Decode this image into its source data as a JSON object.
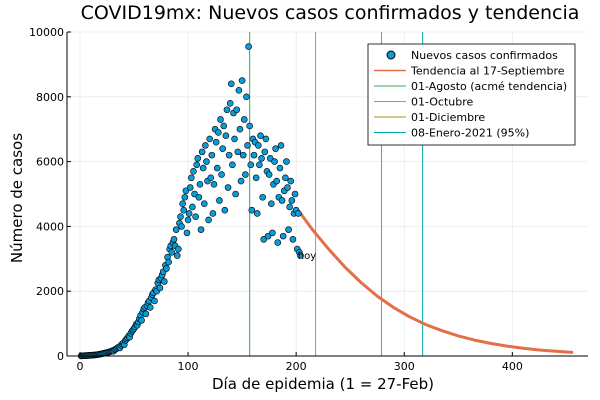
{
  "chart_data": {
    "type": "scatter",
    "title": "COVID19mx: Nuevos casos confirmados y tendencia",
    "xlabel": "Día de epidemia (1 = 27-Feb)",
    "ylabel": "Número de casos",
    "xlim": [
      -12,
      470
    ],
    "ylim": [
      0,
      10000
    ],
    "xticks": [
      0,
      100,
      200,
      300,
      400
    ],
    "yticks": [
      0,
      2000,
      4000,
      6000,
      8000,
      10000
    ],
    "grid": true,
    "legend_position": "top-right",
    "series": [
      {
        "name": "Nuevos casos confirmados",
        "kind": "scatter",
        "color": "#0a9bd8",
        "points": [
          [
            1,
            2
          ],
          [
            2,
            5
          ],
          [
            3,
            8
          ],
          [
            4,
            10
          ],
          [
            5,
            12
          ],
          [
            6,
            15
          ],
          [
            7,
            14
          ],
          [
            8,
            18
          ],
          [
            9,
            20
          ],
          [
            10,
            22
          ],
          [
            11,
            25
          ],
          [
            12,
            28
          ],
          [
            13,
            30
          ],
          [
            14,
            34
          ],
          [
            15,
            38
          ],
          [
            16,
            42
          ],
          [
            17,
            48
          ],
          [
            18,
            55
          ],
          [
            19,
            60
          ],
          [
            20,
            68
          ],
          [
            21,
            75
          ],
          [
            22,
            82
          ],
          [
            23,
            90
          ],
          [
            24,
            98
          ],
          [
            25,
            105
          ],
          [
            26,
            115
          ],
          [
            27,
            125
          ],
          [
            28,
            135
          ],
          [
            29,
            150
          ],
          [
            30,
            165
          ],
          [
            31,
            150
          ],
          [
            32,
            190
          ],
          [
            33,
            210
          ],
          [
            34,
            230
          ],
          [
            35,
            260
          ],
          [
            36,
            280
          ],
          [
            37,
            250
          ],
          [
            38,
            330
          ],
          [
            39,
            370
          ],
          [
            40,
            400
          ],
          [
            41,
            350
          ],
          [
            42,
            480
          ],
          [
            43,
            520
          ],
          [
            44,
            560
          ],
          [
            45,
            620
          ],
          [
            46,
            580
          ],
          [
            47,
            700
          ],
          [
            48,
            760
          ],
          [
            49,
            800
          ],
          [
            50,
            850
          ],
          [
            51,
            900
          ],
          [
            52,
            980
          ],
          [
            53,
            950
          ],
          [
            54,
            1050
          ],
          [
            55,
            1150
          ],
          [
            56,
            1250
          ],
          [
            57,
            1100
          ],
          [
            58,
            1350
          ],
          [
            59,
            1450
          ],
          [
            60,
            1500
          ],
          [
            61,
            1300
          ],
          [
            62,
            1550
          ],
          [
            63,
            1650
          ],
          [
            64,
            1700
          ],
          [
            65,
            1500
          ],
          [
            66,
            1800
          ],
          [
            67,
            1900
          ],
          [
            68,
            1950
          ],
          [
            69,
            1700
          ],
          [
            70,
            2050
          ],
          [
            71,
            2000
          ],
          [
            72,
            2250
          ],
          [
            73,
            2350
          ],
          [
            74,
            2100
          ],
          [
            75,
            2400
          ],
          [
            76,
            2500
          ],
          [
            77,
            2600
          ],
          [
            78,
            2300
          ],
          [
            79,
            2800
          ],
          [
            80,
            2700
          ],
          [
            81,
            3050
          ],
          [
            82,
            2900
          ],
          [
            83,
            3300
          ],
          [
            84,
            3400
          ],
          [
            85,
            3200
          ],
          [
            86,
            3500
          ],
          [
            87,
            3600
          ],
          [
            88,
            3400
          ],
          [
            89,
            3900
          ],
          [
            90,
            3100
          ],
          [
            91,
            3300
          ],
          [
            92,
            4100
          ],
          [
            93,
            4300
          ],
          [
            94,
            4000
          ],
          [
            95,
            4700
          ],
          [
            96,
            4500
          ],
          [
            97,
            4900
          ],
          [
            98,
            5100
          ],
          [
            99,
            3800
          ],
          [
            100,
            4200
          ],
          [
            101,
            4400
          ],
          [
            102,
            5200
          ],
          [
            103,
            5500
          ],
          [
            104,
            4600
          ],
          [
            105,
            5700
          ],
          [
            106,
            5000
          ],
          [
            107,
            4300
          ],
          [
            108,
            5900
          ],
          [
            109,
            6100
          ],
          [
            110,
            4900
          ],
          [
            111,
            5300
          ],
          [
            112,
            3900
          ],
          [
            113,
            6300
          ],
          [
            114,
            5800
          ],
          [
            115,
            4700
          ],
          [
            116,
            6500
          ],
          [
            117,
            6000
          ],
          [
            118,
            5400
          ],
          [
            119,
            4200
          ],
          [
            120,
            6700
          ],
          [
            121,
            5500
          ],
          [
            122,
            6200
          ],
          [
            123,
            4400
          ],
          [
            124,
            5300
          ],
          [
            125,
            7000
          ],
          [
            126,
            6600
          ],
          [
            127,
            5800
          ],
          [
            128,
            6900
          ],
          [
            129,
            4800
          ],
          [
            130,
            7300
          ],
          [
            131,
            5600
          ],
          [
            132,
            6400
          ],
          [
            133,
            7100
          ],
          [
            134,
            4500
          ],
          [
            135,
            6800
          ],
          [
            136,
            7600
          ],
          [
            137,
            5200
          ],
          [
            138,
            6200
          ],
          [
            139,
            7800
          ],
          [
            140,
            8400
          ],
          [
            141,
            5900
          ],
          [
            142,
            7500
          ],
          [
            143,
            6700
          ],
          [
            144,
            5000
          ],
          [
            145,
            7600
          ],
          [
            146,
            6300
          ],
          [
            147,
            8200
          ],
          [
            148,
            7000
          ],
          [
            149,
            5400
          ],
          [
            150,
            8500
          ],
          [
            151,
            6200
          ],
          [
            152,
            7300
          ],
          [
            153,
            5600
          ],
          [
            154,
            8000
          ],
          [
            155,
            6500
          ],
          [
            156,
            9550
          ],
          [
            157,
            7100
          ],
          [
            158,
            5900
          ],
          [
            159,
            4500
          ],
          [
            160,
            6700
          ],
          [
            161,
            6200
          ],
          [
            162,
            6600
          ],
          [
            163,
            5500
          ],
          [
            164,
            4400
          ],
          [
            165,
            6500
          ],
          [
            166,
            5900
          ],
          [
            167,
            6800
          ],
          [
            168,
            6100
          ],
          [
            169,
            4900
          ],
          [
            170,
            3600
          ],
          [
            171,
            6300
          ],
          [
            172,
            6700
          ],
          [
            173,
            5700
          ],
          [
            174,
            3700
          ],
          [
            175,
            5600
          ],
          [
            176,
            6100
          ],
          [
            177,
            4700
          ],
          [
            178,
            3800
          ],
          [
            179,
            5300
          ],
          [
            180,
            6000
          ],
          [
            181,
            6400
          ],
          [
            182,
            5400
          ],
          [
            183,
            3500
          ],
          [
            184,
            4900
          ],
          [
            185,
            5800
          ],
          [
            186,
            6500
          ],
          [
            187,
            4800
          ],
          [
            188,
            3700
          ],
          [
            189,
            5100
          ],
          [
            190,
            5500
          ],
          [
            191,
            6000
          ],
          [
            192,
            5200
          ],
          [
            193,
            3900
          ],
          [
            194,
            4600
          ],
          [
            195,
            5400
          ],
          [
            196,
            4800
          ],
          [
            197,
            3600
          ],
          [
            198,
            4400
          ],
          [
            199,
            5000
          ],
          [
            200,
            4500
          ],
          [
            201,
            3300
          ],
          [
            202,
            4400
          ],
          [
            203,
            3200
          ],
          [
            204,
            3100
          ]
        ]
      },
      {
        "name": "Tendencia al 17-Septiembre",
        "kind": "line",
        "color": "#e26f46",
        "points": [
          [
            204,
            4400
          ],
          [
            215,
            3900
          ],
          [
            230,
            3300
          ],
          [
            245,
            2750
          ],
          [
            260,
            2270
          ],
          [
            275,
            1850
          ],
          [
            290,
            1500
          ],
          [
            305,
            1210
          ],
          [
            320,
            970
          ],
          [
            335,
            780
          ],
          [
            350,
            620
          ],
          [
            365,
            490
          ],
          [
            380,
            390
          ],
          [
            395,
            305
          ],
          [
            410,
            240
          ],
          [
            425,
            185
          ],
          [
            440,
            145
          ],
          [
            455,
            110
          ]
        ]
      },
      {
        "name": "01-Agosto (acmé tendencia)",
        "kind": "vline",
        "color": "#3ba55a",
        "x": 157
      },
      {
        "name": "01-Octubre",
        "kind": "vline",
        "color": "#c371d2",
        "x": 218
      },
      {
        "name": "01-Diciembre",
        "kind": "vline",
        "color": "#ac8d18",
        "x": 279
      },
      {
        "name": "08-Enero-2021 (95%)",
        "kind": "vline",
        "color": "#00a9ad",
        "x": 317
      }
    ],
    "annotations": [
      {
        "text": "hoy",
        "x": 210,
        "y": 3000
      }
    ]
  }
}
